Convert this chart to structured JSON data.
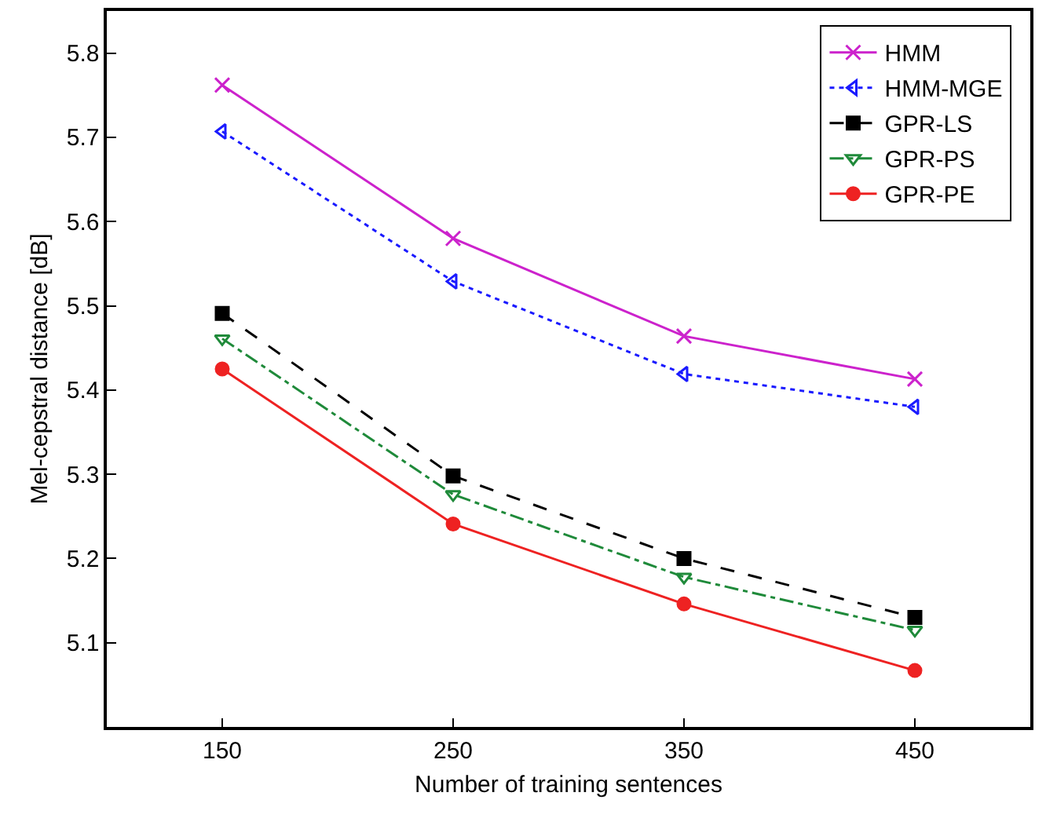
{
  "chart_data": {
    "type": "line",
    "xlabel": "Number of training sentences",
    "ylabel": "Mel-cepstral distance [dB]",
    "x": [
      150,
      250,
      350,
      450
    ],
    "xlim": [
      100,
      500
    ],
    "xticks": [
      150,
      250,
      350,
      450
    ],
    "ylim": [
      5.0,
      5.85
    ],
    "yticks": [
      5.1,
      5.2,
      5.3,
      5.4,
      5.5,
      5.6,
      5.7,
      5.8
    ],
    "grid": false,
    "legend": "top right",
    "series": [
      {
        "name": "HMM",
        "color": "#cc22cc",
        "marker": "cross",
        "line_style": "solid",
        "values": [
          5.762,
          5.58,
          5.464,
          5.413
        ]
      },
      {
        "name": "HMM-MGE",
        "color": "#1a1aff",
        "marker": "triangle-left",
        "line_style": "dotted",
        "values": [
          5.707,
          5.529,
          5.419,
          5.38
        ]
      },
      {
        "name": "GPR-LS",
        "color": "#000000",
        "marker": "square",
        "line_style": "dashed",
        "values": [
          5.491,
          5.298,
          5.2,
          5.13
        ]
      },
      {
        "name": "GPR-PS",
        "color": "#1f8a3a",
        "marker": "triangle-down",
        "line_style": "dashdot",
        "values": [
          5.461,
          5.276,
          5.178,
          5.115
        ]
      },
      {
        "name": "GPR-PE",
        "color": "#ee2222",
        "marker": "circle",
        "line_style": "solid",
        "values": [
          5.425,
          5.241,
          5.146,
          5.067
        ]
      }
    ]
  }
}
